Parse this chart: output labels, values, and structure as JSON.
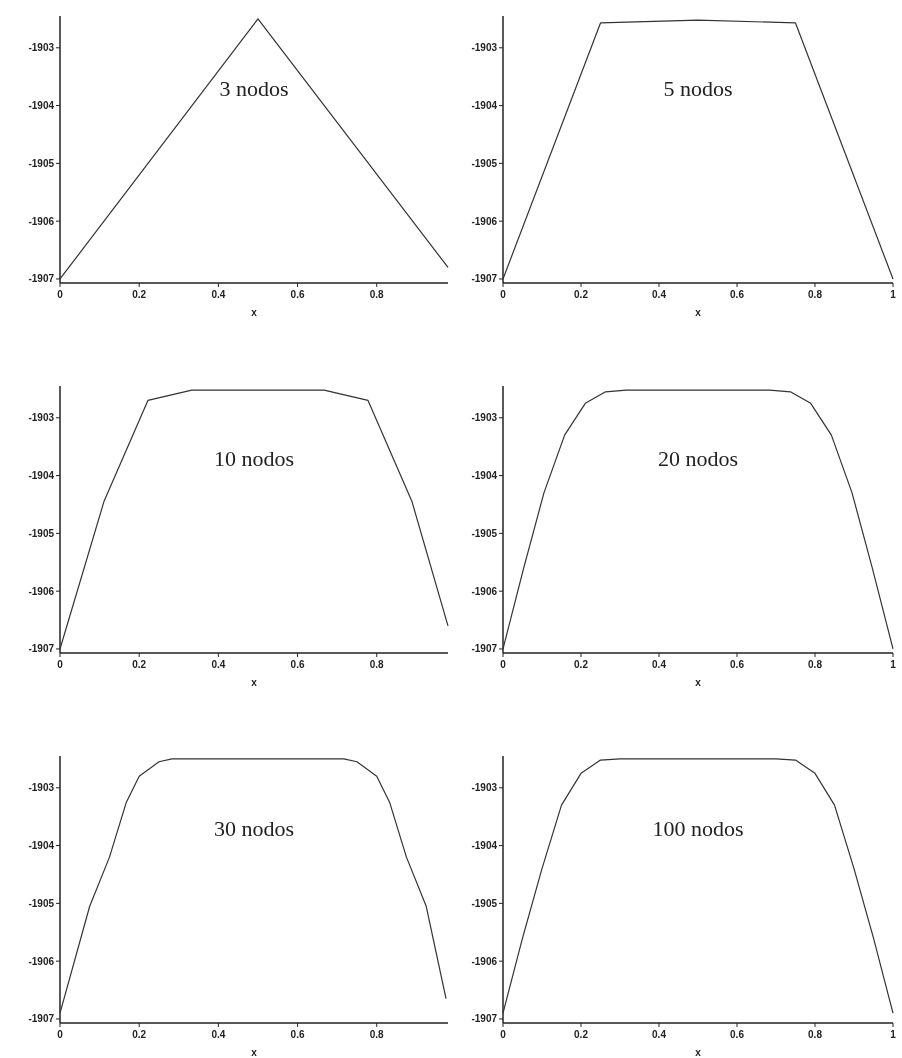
{
  "chart_data": [
    {
      "type": "line",
      "xlabel": "x",
      "annotations": [
        "3 nodos"
      ],
      "x": [
        0,
        0.5,
        0.98
      ],
      "series": [
        {
          "color": "#333333",
          "values": [
            -1907,
            -1902.5,
            -1906.8
          ]
        }
      ],
      "xlim": [
        0,
        0.98
      ],
      "xticks": [
        0,
        0.2,
        0.4,
        0.6,
        0.8
      ],
      "ylim": [
        -1907.07,
        -1902.45
      ],
      "yticks": [
        -1907,
        -1906,
        -1905,
        -1904,
        -1903
      ]
    },
    {
      "type": "line",
      "xlabel": "x",
      "annotations": [
        "5 nodos"
      ],
      "x": [
        0,
        0.25,
        0.5,
        0.75,
        1
      ],
      "series": [
        {
          "color": "#333333",
          "values": [
            -1907,
            -1902.57,
            -1902.52,
            -1902.57,
            -1907
          ]
        }
      ],
      "xlim": [
        0,
        1
      ],
      "xticks": [
        0,
        0.2,
        0.4,
        0.6,
        0.8,
        1
      ],
      "ylim": [
        -1907.07,
        -1902.45
      ],
      "yticks": [
        -1907,
        -1906,
        -1905,
        -1904,
        -1903
      ]
    },
    {
      "type": "line",
      "xlabel": "x",
      "annotations": [
        "10 nodos"
      ],
      "x": [
        0,
        0.111,
        0.222,
        0.333,
        0.444,
        0.556,
        0.667,
        0.778,
        0.889,
        0.98
      ],
      "series": [
        {
          "color": "#333333",
          "values": [
            -1907,
            -1904.45,
            -1902.7,
            -1902.52,
            -1902.52,
            -1902.52,
            -1902.52,
            -1902.7,
            -1904.45,
            -1906.6
          ]
        }
      ],
      "xlim": [
        0,
        0.98
      ],
      "xticks": [
        0,
        0.2,
        0.4,
        0.6,
        0.8
      ],
      "ylim": [
        -1907.07,
        -1902.45
      ],
      "yticks": [
        -1907,
        -1906,
        -1905,
        -1904,
        -1903
      ]
    },
    {
      "type": "line",
      "xlabel": "x",
      "annotations": [
        "20 nodos"
      ],
      "x": [
        0,
        0.053,
        0.105,
        0.158,
        0.211,
        0.263,
        0.316,
        0.5,
        0.684,
        0.737,
        0.789,
        0.842,
        0.895,
        0.947,
        1
      ],
      "series": [
        {
          "color": "#333333",
          "values": [
            -1907,
            -1905.6,
            -1904.3,
            -1903.3,
            -1902.75,
            -1902.55,
            -1902.52,
            -1902.52,
            -1902.52,
            -1902.55,
            -1902.75,
            -1903.3,
            -1904.3,
            -1905.6,
            -1907
          ]
        }
      ],
      "xlim": [
        0,
        1
      ],
      "xticks": [
        0,
        0.2,
        0.4,
        0.6,
        0.8,
        1
      ],
      "ylim": [
        -1907.07,
        -1902.45
      ],
      "yticks": [
        -1907,
        -1906,
        -1905,
        -1904,
        -1903
      ]
    },
    {
      "type": "line",
      "xlabel": "x",
      "annotations": [
        "30 nodos"
      ],
      "x": [
        0,
        0.075,
        0.125,
        0.167,
        0.2,
        0.25,
        0.283,
        0.5,
        0.717,
        0.75,
        0.8,
        0.833,
        0.875,
        0.925,
        0.975
      ],
      "series": [
        {
          "color": "#333333",
          "values": [
            -1906.9,
            -1905.05,
            -1904.2,
            -1903.26,
            -1902.8,
            -1902.55,
            -1902.5,
            -1902.5,
            -1902.5,
            -1902.55,
            -1902.8,
            -1903.26,
            -1904.2,
            -1905.05,
            -1906.65
          ]
        }
      ],
      "xlim": [
        0,
        0.98
      ],
      "xticks": [
        0,
        0.2,
        0.4,
        0.6,
        0.8
      ],
      "ylim": [
        -1907.07,
        -1902.45
      ],
      "yticks": [
        -1907,
        -1906,
        -1905,
        -1904,
        -1903
      ]
    },
    {
      "type": "line",
      "xlabel": "x",
      "annotations": [
        "100 nodos"
      ],
      "x": [
        0,
        0.05,
        0.1,
        0.15,
        0.2,
        0.25,
        0.3,
        0.5,
        0.7,
        0.75,
        0.8,
        0.85,
        0.9,
        0.95,
        1
      ],
      "series": [
        {
          "color": "#333333",
          "values": [
            -1906.9,
            -1905.6,
            -1904.4,
            -1903.3,
            -1902.75,
            -1902.52,
            -1902.5,
            -1902.5,
            -1902.5,
            -1902.52,
            -1902.75,
            -1903.3,
            -1904.4,
            -1905.6,
            -1906.9
          ]
        }
      ],
      "xlim": [
        0,
        1
      ],
      "xticks": [
        0,
        0.2,
        0.4,
        0.6,
        0.8,
        1
      ],
      "ylim": [
        -1907.07,
        -1902.45
      ],
      "yticks": [
        -1907,
        -1906,
        -1905,
        -1904,
        -1903
      ]
    }
  ]
}
